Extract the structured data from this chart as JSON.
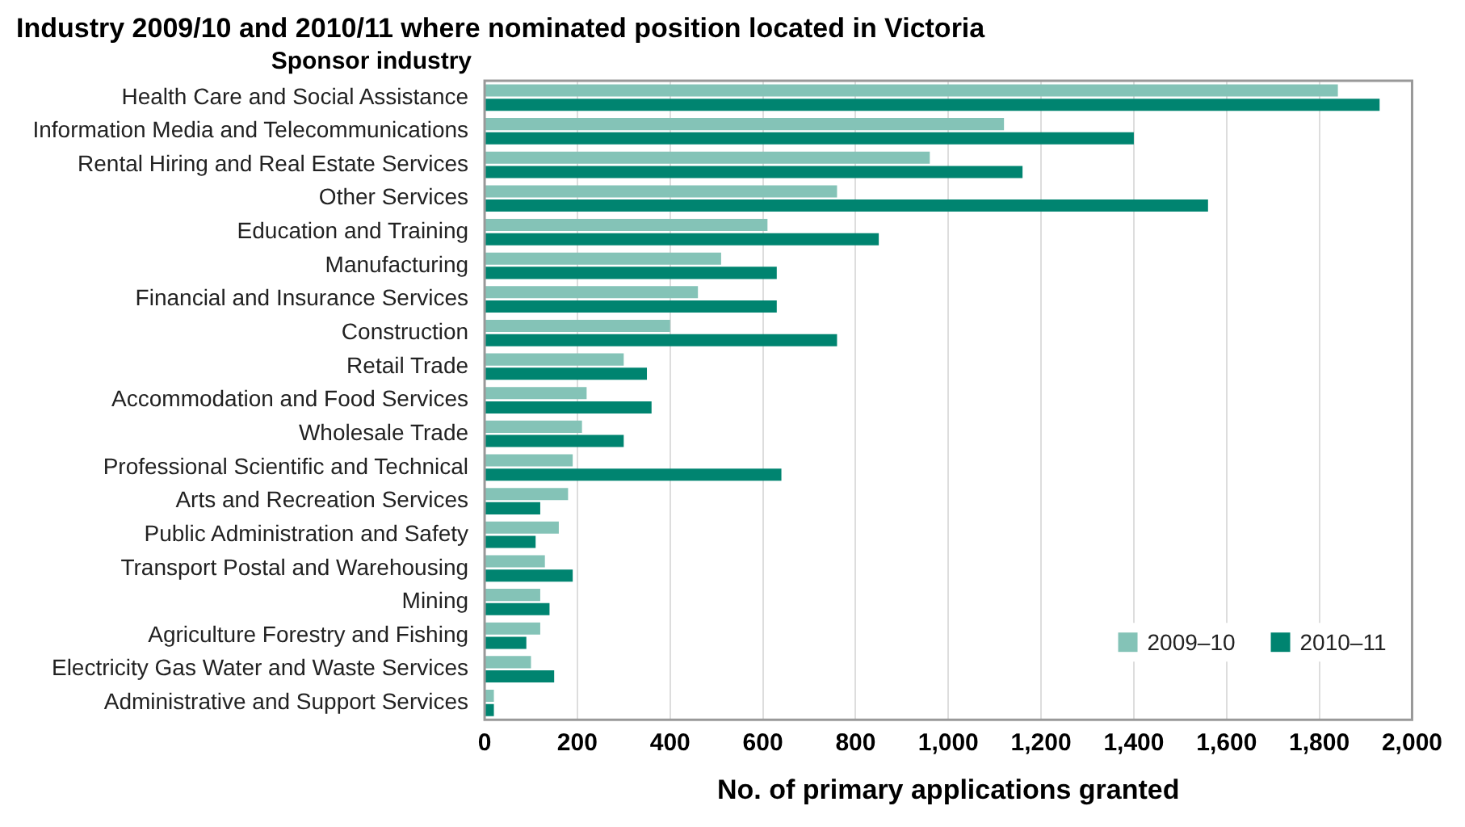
{
  "chart_data": {
    "type": "bar",
    "orientation": "horizontal",
    "title": "Industry 2009/10 and 2010/11 where nominated position located in Victoria",
    "ylabel": "Sponsor industry",
    "xlabel": "No. of primary applications granted",
    "categories": [
      "Health Care and Social Assistance",
      "Information Media and Telecommunications",
      "Rental Hiring and Real Estate Services",
      "Other Services",
      "Education and Training",
      "Manufacturing",
      "Financial and Insurance Services",
      "Construction",
      "Retail Trade",
      "Accommodation and Food Services",
      "Wholesale Trade",
      "Professional Scientific and Technical",
      "Arts and Recreation Services",
      "Public Administration and Safety",
      "Transport Postal and Warehousing",
      "Mining",
      "Agriculture Forestry and Fishing",
      "Electricity Gas Water and Waste Services",
      "Administrative and Support Services"
    ],
    "series": [
      {
        "name": "2009–10",
        "color": "#84c3b7",
        "values": [
          1840,
          1120,
          960,
          760,
          610,
          510,
          460,
          400,
          300,
          220,
          210,
          190,
          180,
          160,
          130,
          120,
          120,
          100,
          20
        ]
      },
      {
        "name": "2010–11",
        "color": "#008470",
        "values": [
          1930,
          1400,
          1160,
          1560,
          850,
          630,
          630,
          760,
          350,
          360,
          300,
          640,
          120,
          110,
          190,
          140,
          90,
          150,
          20
        ]
      }
    ],
    "xlim": [
      0,
      2000
    ],
    "xticks": [
      {
        "value": 0,
        "label": "0"
      },
      {
        "value": 200,
        "label": "200"
      },
      {
        "value": 400,
        "label": "400"
      },
      {
        "value": 600,
        "label": "600"
      },
      {
        "value": 800,
        "label": "800"
      },
      {
        "value": 1000,
        "label": "1,000"
      },
      {
        "value": 1200,
        "label": "1,200"
      },
      {
        "value": 1400,
        "label": "1,400"
      },
      {
        "value": 1600,
        "label": "1,600"
      },
      {
        "value": 1800,
        "label": "1,800"
      },
      {
        "value": 2000,
        "label": "2,000"
      }
    ],
    "grid": "x",
    "legend": "bottom right"
  }
}
